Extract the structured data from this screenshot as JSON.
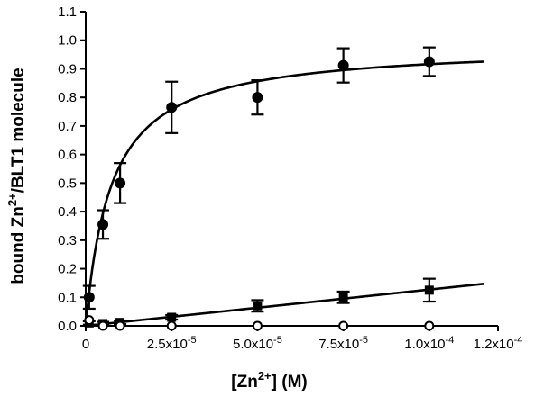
{
  "chart_data": {
    "type": "scatter",
    "xlabel": "[Zn2+] (M)",
    "xlabel_parts": {
      "pre": "[Zn",
      "sup": "2+",
      "post": "] (M)"
    },
    "ylabel": "bound Zn2+/BLT1 molecule",
    "ylabel_parts": {
      "pre": "bound Zn",
      "sup": "2+",
      "post": "/BLT1 molecule"
    },
    "xlim": [
      0,
      0.00012
    ],
    "ylim": [
      0,
      1.1
    ],
    "grid": false,
    "x_ticks": [
      {
        "value": 0,
        "label": "0"
      },
      {
        "value": 2.5e-05,
        "label": "2.5x10-5",
        "base": "2.5x10",
        "exp": "-5"
      },
      {
        "value": 5e-05,
        "label": "5.0x10-5",
        "base": "5.0x10",
        "exp": "-5"
      },
      {
        "value": 7.5e-05,
        "label": "7.5x10-5",
        "base": "7.5x10",
        "exp": "-5"
      },
      {
        "value": 0.0001,
        "label": "1.0x10-4",
        "base": "1.0x10",
        "exp": "-4"
      },
      {
        "value": 0.000125,
        "label": "1.2x10-4",
        "base": "1.2x10",
        "exp": "-4"
      }
    ],
    "y_ticks": [
      {
        "value": 0.0,
        "label": "0.0"
      },
      {
        "value": 0.1,
        "label": "0.1"
      },
      {
        "value": 0.2,
        "label": "0.2"
      },
      {
        "value": 0.3,
        "label": "0.3"
      },
      {
        "value": 0.4,
        "label": "0.4"
      },
      {
        "value": 0.5,
        "label": "0.5"
      },
      {
        "value": 0.6,
        "label": "0.6"
      },
      {
        "value": 0.7,
        "label": "0.7"
      },
      {
        "value": 0.8,
        "label": "0.8"
      },
      {
        "value": 0.9,
        "label": "0.9"
      },
      {
        "value": 1.0,
        "label": "1.0"
      },
      {
        "value": 1.1,
        "label": "1.1"
      }
    ],
    "series": [
      {
        "marker": "filled-circle",
        "fit": {
          "model": "hyperbolic",
          "bmax": 0.985,
          "kd": 7.5e-06
        },
        "points": [
          {
            "x": 1e-06,
            "y": 0.1,
            "err": 0.04
          },
          {
            "x": 5e-06,
            "y": 0.355,
            "err": 0.05
          },
          {
            "x": 1e-05,
            "y": 0.5,
            "err": 0.07
          },
          {
            "x": 2.5e-05,
            "y": 0.765,
            "err": 0.09
          },
          {
            "x": 5e-05,
            "y": 0.8,
            "err": 0.06
          },
          {
            "x": 7.5e-05,
            "y": 0.912,
            "err": 0.06
          },
          {
            "x": 0.0001,
            "y": 0.925,
            "err": 0.05
          }
        ]
      },
      {
        "marker": "filled-square",
        "fit": {
          "model": "linear",
          "slope": 1270,
          "intercept": 0.0
        },
        "points": [
          {
            "x": 1e-06,
            "y": 0.01,
            "err": 0.006
          },
          {
            "x": 5e-06,
            "y": 0.008,
            "err": 0.006
          },
          {
            "x": 1e-05,
            "y": 0.012,
            "err": 0.006
          },
          {
            "x": 2.5e-05,
            "y": 0.03,
            "err": 0.008
          },
          {
            "x": 5e-05,
            "y": 0.07,
            "err": 0.02
          },
          {
            "x": 7.5e-05,
            "y": 0.1,
            "err": 0.02
          },
          {
            "x": 0.0001,
            "y": 0.125,
            "err": 0.04
          }
        ]
      },
      {
        "marker": "open-circle",
        "points": [
          {
            "x": 1e-06,
            "y": 0.02
          },
          {
            "x": 5e-06,
            "y": 0.0
          },
          {
            "x": 1e-05,
            "y": 0.0
          },
          {
            "x": 2.5e-05,
            "y": 0.0
          },
          {
            "x": 5e-05,
            "y": 0.0
          },
          {
            "x": 7.5e-05,
            "y": 0.0
          },
          {
            "x": 0.0001,
            "y": 0.0
          }
        ]
      }
    ]
  }
}
